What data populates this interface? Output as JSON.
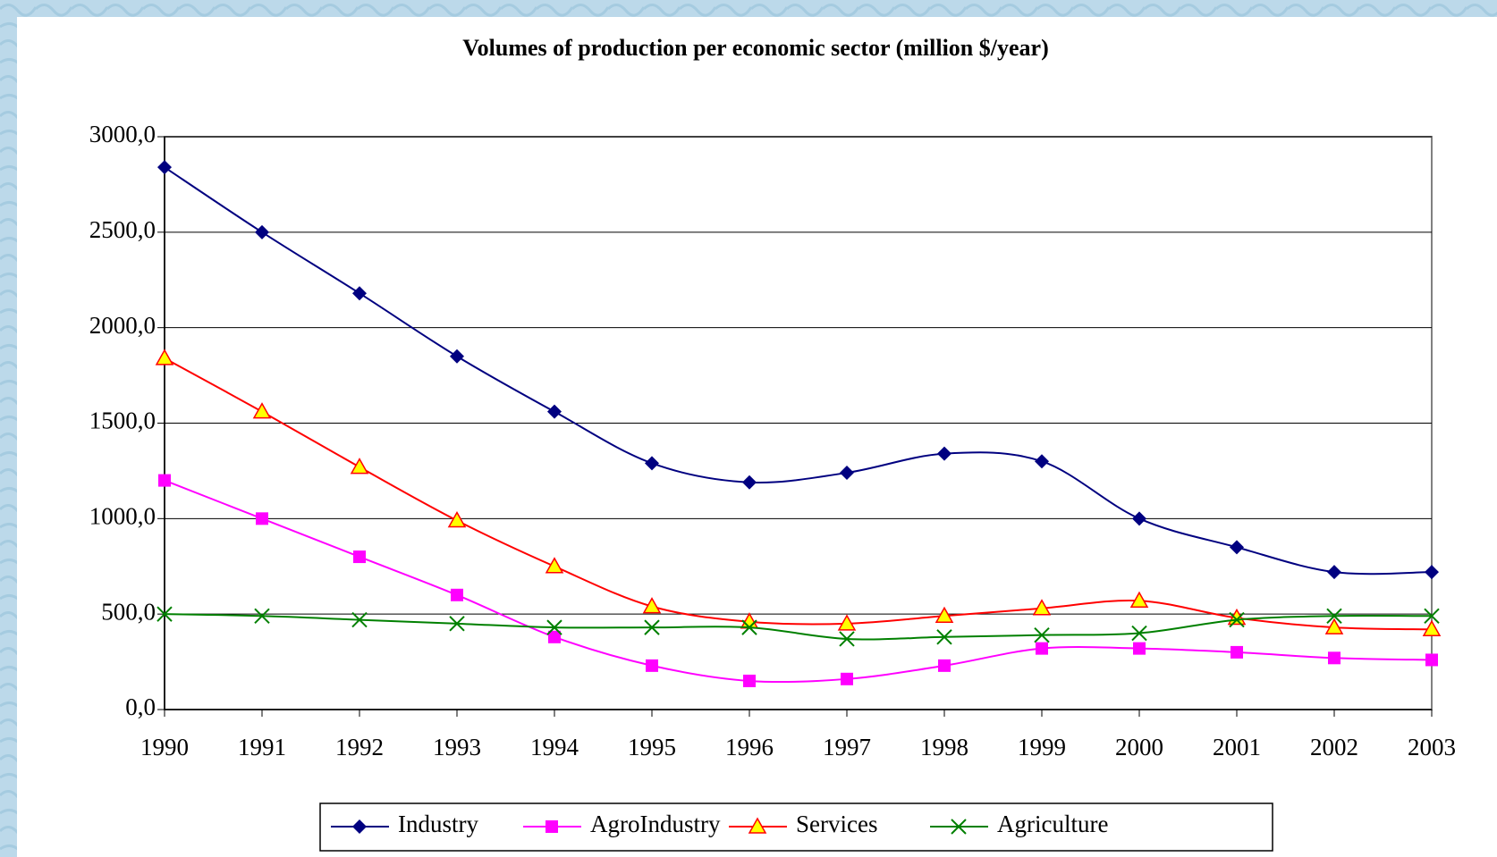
{
  "chart_data": {
    "type": "line",
    "title": "Volumes of production per economic sector (million $/year)",
    "categories": [
      "1990",
      "1991",
      "1992",
      "1993",
      "1994",
      "1995",
      "1996",
      "1997",
      "1998",
      "1999",
      "2000",
      "2001",
      "2002",
      "2003"
    ],
    "series": [
      {
        "name": "Industry",
        "color": "#000080",
        "marker": "diamond",
        "values": [
          2840,
          2500,
          2180,
          1850,
          1560,
          1290,
          1190,
          1240,
          1340,
          1300,
          1000,
          850,
          720,
          720
        ]
      },
      {
        "name": "AgroIndustry",
        "color": "#ff00ff",
        "marker": "square",
        "values": [
          1200,
          1000,
          800,
          600,
          380,
          230,
          150,
          160,
          230,
          320,
          320,
          300,
          270,
          260
        ]
      },
      {
        "name": "Services",
        "color": "#ff0000",
        "marker": "triangle",
        "marker_fill": "#ffff00",
        "values": [
          1840,
          1560,
          1270,
          990,
          750,
          540,
          460,
          450,
          490,
          530,
          570,
          480,
          430,
          420
        ]
      },
      {
        "name": "Agriculture",
        "color": "#008000",
        "marker": "x",
        "values": [
          500,
          490,
          470,
          450,
          430,
          430,
          430,
          370,
          380,
          390,
          400,
          470,
          490,
          490
        ]
      }
    ],
    "ylim": [
      0,
      3000
    ],
    "yticks": [
      {
        "value": 0,
        "label": "0,0"
      },
      {
        "value": 500,
        "label": "500,0"
      },
      {
        "value": 1000,
        "label": "1000,0"
      },
      {
        "value": 1500,
        "label": "1500,0"
      },
      {
        "value": 2000,
        "label": "2000,0"
      },
      {
        "value": 2500,
        "label": "2500,0"
      },
      {
        "value": 3000,
        "label": "3000,0"
      }
    ],
    "grid": true,
    "legend": "bottom"
  }
}
